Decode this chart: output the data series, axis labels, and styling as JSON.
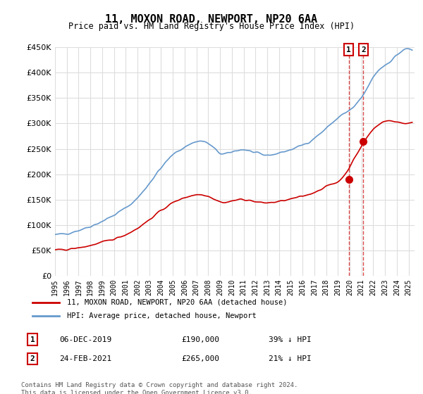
{
  "title": "11, MOXON ROAD, NEWPORT, NP20 6AA",
  "subtitle": "Price paid vs. HM Land Registry's House Price Index (HPI)",
  "footer": "Contains HM Land Registry data © Crown copyright and database right 2024.\nThis data is licensed under the Open Government Licence v3.0.",
  "legend_line1": "11, MOXON ROAD, NEWPORT, NP20 6AA (detached house)",
  "legend_line2": "HPI: Average price, detached house, Newport",
  "sale1_label": "1",
  "sale1_date": "06-DEC-2019",
  "sale1_price": "£190,000",
  "sale1_hpi": "39% ↓ HPI",
  "sale2_label": "2",
  "sale2_date": "24-FEB-2021",
  "sale2_price": "£265,000",
  "sale2_hpi": "21% ↓ HPI",
  "red_color": "#cc0000",
  "blue_color": "#6699cc",
  "background_color": "#ffffff",
  "grid_color": "#dddddd",
  "ylim": [
    0,
    450000
  ],
  "xlim_start": 1995.0,
  "xlim_end": 2025.5,
  "sale1_x": 2019.92,
  "sale1_y": 190000,
  "sale2_x": 2021.15,
  "sale2_y": 265000
}
